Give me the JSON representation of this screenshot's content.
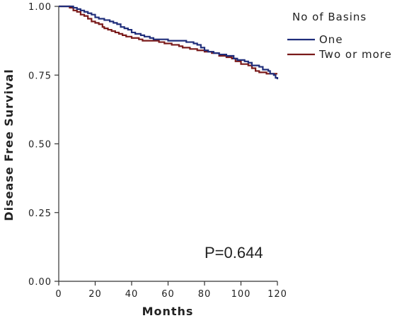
{
  "chart_data": {
    "type": "line",
    "step": true,
    "xlabel": "Months",
    "ylabel": "Disease Free Survival",
    "xlim": [
      0,
      120
    ],
    "ylim": [
      0,
      1
    ],
    "x_ticks": [
      "0",
      "20",
      "40",
      "60",
      "80",
      "100",
      "120"
    ],
    "y_ticks": [
      "0.00",
      "0.25",
      "0.50",
      "0.75",
      "1.00"
    ],
    "grid": false,
    "legend": {
      "title": "No of Basins",
      "placement": "top-right"
    },
    "annotation": "P=0.644",
    "series": [
      {
        "name": "One",
        "color": "#1f2d7a",
        "points": [
          [
            0,
            1.0
          ],
          [
            7,
            1.0
          ],
          [
            8,
            0.995
          ],
          [
            10,
            0.99
          ],
          [
            12,
            0.985
          ],
          [
            14,
            0.98
          ],
          [
            16,
            0.975
          ],
          [
            18,
            0.97
          ],
          [
            20,
            0.96
          ],
          [
            22,
            0.955
          ],
          [
            25,
            0.95
          ],
          [
            28,
            0.945
          ],
          [
            30,
            0.94
          ],
          [
            32,
            0.935
          ],
          [
            34,
            0.925
          ],
          [
            36,
            0.92
          ],
          [
            38,
            0.915
          ],
          [
            40,
            0.905
          ],
          [
            42,
            0.9
          ],
          [
            45,
            0.895
          ],
          [
            47,
            0.89
          ],
          [
            50,
            0.885
          ],
          [
            52,
            0.88
          ],
          [
            60,
            0.875
          ],
          [
            70,
            0.87
          ],
          [
            74,
            0.865
          ],
          [
            76,
            0.86
          ],
          [
            78,
            0.85
          ],
          [
            80,
            0.84
          ],
          [
            82,
            0.835
          ],
          [
            85,
            0.83
          ],
          [
            88,
            0.825
          ],
          [
            92,
            0.82
          ],
          [
            96,
            0.81
          ],
          [
            98,
            0.805
          ],
          [
            102,
            0.8
          ],
          [
            104,
            0.795
          ],
          [
            106,
            0.785
          ],
          [
            110,
            0.78
          ],
          [
            112,
            0.77
          ],
          [
            115,
            0.765
          ],
          [
            116,
            0.755
          ],
          [
            118,
            0.75
          ],
          [
            119,
            0.74
          ],
          [
            120,
            0.735
          ]
        ]
      },
      {
        "name": "Two or more",
        "color": "#7a1a1a",
        "points": [
          [
            0,
            1.0
          ],
          [
            5,
            1.0
          ],
          [
            6,
            0.995
          ],
          [
            8,
            0.985
          ],
          [
            10,
            0.98
          ],
          [
            12,
            0.97
          ],
          [
            14,
            0.965
          ],
          [
            16,
            0.955
          ],
          [
            18,
            0.945
          ],
          [
            20,
            0.94
          ],
          [
            22,
            0.935
          ],
          [
            24,
            0.925
          ],
          [
            25,
            0.92
          ],
          [
            27,
            0.915
          ],
          [
            29,
            0.91
          ],
          [
            31,
            0.905
          ],
          [
            33,
            0.9
          ],
          [
            35,
            0.895
          ],
          [
            37,
            0.89
          ],
          [
            40,
            0.885
          ],
          [
            44,
            0.88
          ],
          [
            46,
            0.875
          ],
          [
            50,
            0.875
          ],
          [
            55,
            0.87
          ],
          [
            58,
            0.865
          ],
          [
            62,
            0.86
          ],
          [
            66,
            0.855
          ],
          [
            68,
            0.85
          ],
          [
            72,
            0.845
          ],
          [
            76,
            0.84
          ],
          [
            80,
            0.835
          ],
          [
            84,
            0.83
          ],
          [
            88,
            0.82
          ],
          [
            92,
            0.815
          ],
          [
            95,
            0.81
          ],
          [
            97,
            0.8
          ],
          [
            100,
            0.79
          ],
          [
            104,
            0.785
          ],
          [
            106,
            0.775
          ],
          [
            108,
            0.765
          ],
          [
            110,
            0.76
          ],
          [
            114,
            0.755
          ],
          [
            118,
            0.755
          ],
          [
            120,
            0.755
          ]
        ]
      }
    ]
  }
}
